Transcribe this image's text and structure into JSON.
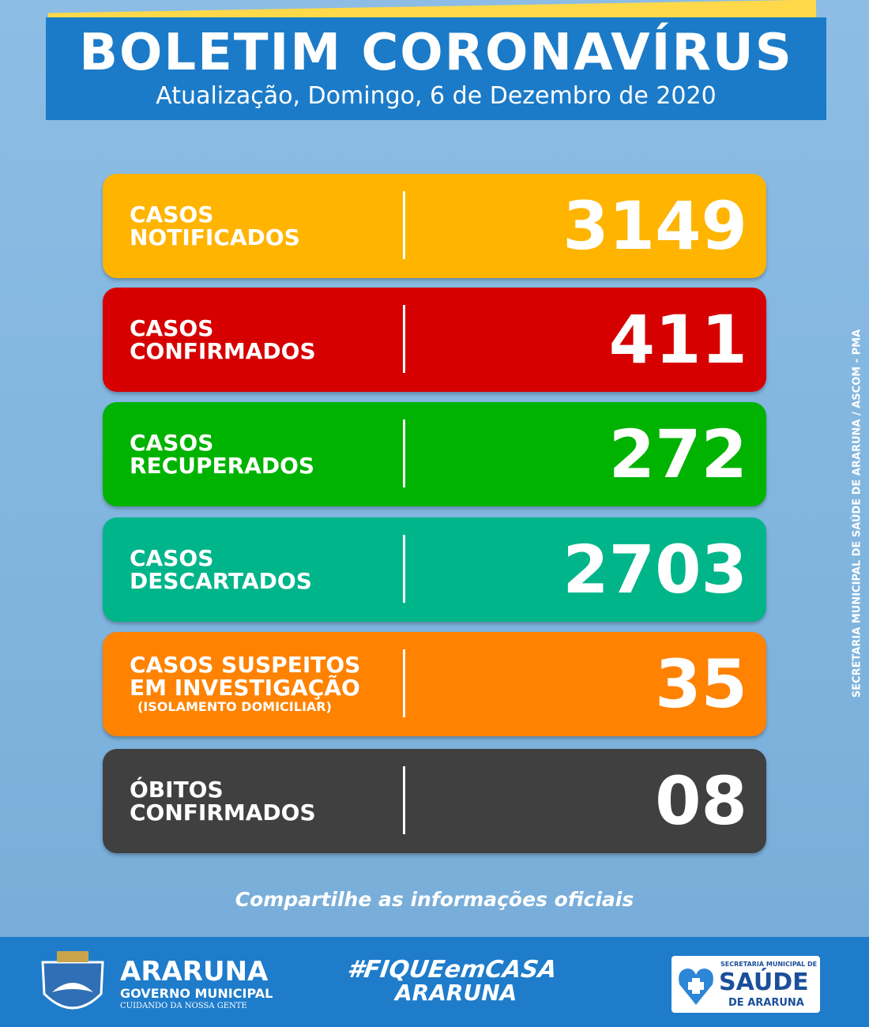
{
  "header": {
    "title": "BOLETIM CORONAVÍRUS",
    "subtitle": "Atualização, Domingo, 6 de Dezembro de 2020"
  },
  "cards": [
    {
      "label": [
        "CASOS",
        "NOTIFICADOS"
      ],
      "value": "3149",
      "color": "#ffb400"
    },
    {
      "label": [
        "CASOS",
        "CONFIRMADOS"
      ],
      "value": "411",
      "color": "#d60000"
    },
    {
      "label": [
        "CASOS",
        "RECUPERADOS"
      ],
      "value": "272",
      "color": "#00b300"
    },
    {
      "label": [
        "CASOS",
        "DESCARTADOS"
      ],
      "value": "2703",
      "color": "#00b58a"
    },
    {
      "label": [
        "CASOS SUSPEITOS",
        "EM INVESTIGAÇÃO"
      ],
      "note": "(ISOLAMENTO DOMICILIAR)",
      "value": "35",
      "color": "#ff8200"
    },
    {
      "label": [
        "ÓBITOS",
        "CONFIRMADOS"
      ],
      "value": "08",
      "color": "#404040"
    }
  ],
  "side_text": "SECRETARIA MUNICIPAL DE SAÚDE DE ARARUNA / ASCOM - PMA",
  "share_text": "Compartilhe as informações oficiais",
  "footer": {
    "city": {
      "name": "ARARUNA",
      "line1": "GOVERNO MUNICIPAL",
      "line2": "CUIDANDO DA NOSSA GENTE"
    },
    "hashtag": {
      "line1": "#FIQUEemCASA",
      "line2": "ARARUNA"
    },
    "health": {
      "line1": "SECRETARIA MUNICIPAL DE",
      "line2": "SAÚDE",
      "line3": "DE ARARUNA"
    }
  }
}
